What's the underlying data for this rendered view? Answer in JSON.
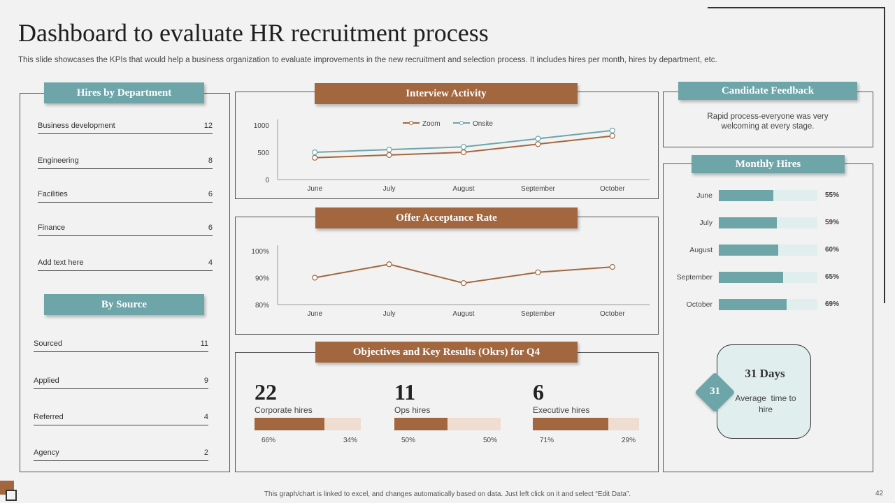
{
  "page": {
    "title": "Dashboard to evaluate HR recruitment process",
    "subtitle": "This slide showcases the KPIs that would help a business organization to evaluate improvements in the new recruitment and selection process. It includes hires per month, hires by department, etc.",
    "footer": "This graph/chart is linked to excel, and changes automatically based on data. Just left click on it and select “Edit Data”.",
    "page_number": "42"
  },
  "colors": {
    "teal": "#6ea5a9",
    "brown": "#a2673e",
    "light_brown": "#f0ddd1",
    "light_teal": "#e1eeee"
  },
  "hires_by_department": {
    "header": "Hires by Department",
    "rows": [
      {
        "label": "Business development",
        "value": "12"
      },
      {
        "label": "Engineering",
        "value": "8"
      },
      {
        "label": "Facilities",
        "value": "6"
      },
      {
        "label": "Finance",
        "value": "6"
      },
      {
        "label": "Add text here",
        "value": "4"
      }
    ]
  },
  "by_source": {
    "header": "By Source",
    "rows": [
      {
        "label": "Sourced",
        "value": "11"
      },
      {
        "label": "Applied",
        "value": "9"
      },
      {
        "label": "Referred",
        "value": "4"
      },
      {
        "label": "Agency",
        "value": "2"
      }
    ]
  },
  "interview_activity": {
    "header": "Interview Activity"
  },
  "offer_acceptance": {
    "header": "Offer Acceptance Rate"
  },
  "okrs": {
    "header": "Objectives and Key Results (Okrs) for Q4",
    "items": [
      {
        "number": "22",
        "label": "Corporate hires",
        "left_pct": "66%",
        "right_pct": "34%",
        "fill": 0.66
      },
      {
        "number": "11",
        "label": "Ops hires",
        "left_pct": "50%",
        "right_pct": "50%",
        "fill": 0.5
      },
      {
        "number": "6",
        "label": "Executive hires",
        "left_pct": "71%",
        "right_pct": "29%",
        "fill": 0.71
      }
    ]
  },
  "candidate_feedback": {
    "header": "Candidate Feedback",
    "text": "Rapid process-everyone was very welcoming at every stage."
  },
  "monthly_hires": {
    "header": "Monthly Hires",
    "rows": [
      {
        "month": "June",
        "pct": "55%",
        "value": 0.55
      },
      {
        "month": "July",
        "pct": "59%",
        "value": 0.59
      },
      {
        "month": "August",
        "pct": "60%",
        "value": 0.6
      },
      {
        "month": "September",
        "pct": "65%",
        "value": 0.65
      },
      {
        "month": "October",
        "pct": "69%",
        "value": 0.69
      }
    ]
  },
  "time_to_hire": {
    "badge": "31",
    "days": "31 Days",
    "label": "Average  time to hire"
  },
  "chart_data": [
    {
      "type": "line",
      "categories": [
        "June",
        "July",
        "August",
        "September",
        "October"
      ],
      "series": [
        {
          "name": "Zoom",
          "values": [
            400,
            450,
            500,
            650,
            800
          ],
          "color": "#a2673e"
        },
        {
          "name": "Onsite",
          "values": [
            500,
            550,
            600,
            750,
            900
          ],
          "color": "#6ea5a9"
        }
      ],
      "yticks": [
        "0",
        "500",
        "1000"
      ],
      "ylim": [
        0,
        1000
      ],
      "legend": "top"
    },
    {
      "type": "line",
      "categories": [
        "June",
        "July",
        "August",
        "September",
        "October"
      ],
      "series": [
        {
          "values": [
            90,
            95,
            88,
            92,
            94
          ],
          "color": "#a2673e"
        }
      ],
      "yticks": [
        "80%",
        "90%",
        "100%"
      ],
      "ylim": [
        80,
        100
      ]
    }
  ]
}
